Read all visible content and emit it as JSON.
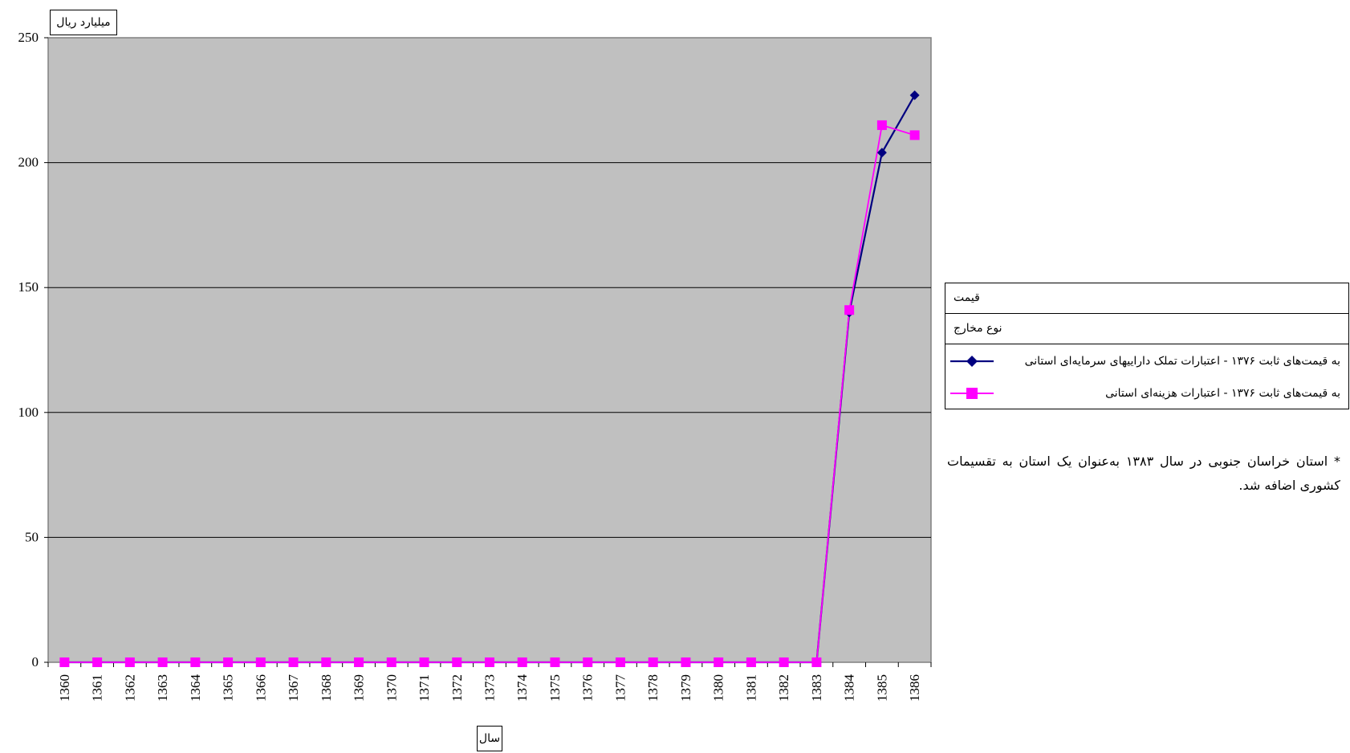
{
  "chart_data": {
    "type": "line",
    "x": [
      "1360",
      "1361",
      "1362",
      "1363",
      "1364",
      "1365",
      "1366",
      "1367",
      "1368",
      "1369",
      "1370",
      "1371",
      "1372",
      "1373",
      "1374",
      "1375",
      "1376",
      "1377",
      "1378",
      "1379",
      "1380",
      "1381",
      "1382",
      "1383",
      "1384",
      "1385",
      "1386"
    ],
    "series": [
      {
        "name": "به قیمت‌های ثابت ۱۳۷۶ - اعتبارات تملک داراییهای سرمایه‌ای استانی",
        "color": "#000080",
        "marker": "diamond",
        "values": [
          0,
          0,
          0,
          0,
          0,
          0,
          0,
          0,
          0,
          0,
          0,
          0,
          0,
          0,
          0,
          0,
          0,
          0,
          0,
          0,
          0,
          0,
          0,
          0,
          140,
          204,
          227
        ]
      },
      {
        "name": "به قیمت‌های ثابت ۱۳۷۶ - اعتبارات هزینه‌ای استانی",
        "color": "#ff00ff",
        "marker": "square",
        "values": [
          0,
          0,
          0,
          0,
          0,
          0,
          0,
          0,
          0,
          0,
          0,
          0,
          0,
          0,
          0,
          0,
          0,
          0,
          0,
          0,
          0,
          0,
          0,
          0,
          141,
          215,
          211
        ]
      }
    ],
    "yticks": [
      "0",
      "50",
      "100",
      "150",
      "200",
      "250"
    ],
    "ylim": [
      0,
      250
    ],
    "ylabel": "میلیارد ریال",
    "xlabel": "سال",
    "grid": true,
    "plot_background": "#c0c0c0",
    "legend_position": "right",
    "legend_header": [
      "قیمت",
      "نوع مخارج"
    ]
  },
  "note": "* استان خراسان جنوبی در سال ۱۳۸۳ به‌عنوان یک استان به تقسیمات کشوری اضافه شد."
}
